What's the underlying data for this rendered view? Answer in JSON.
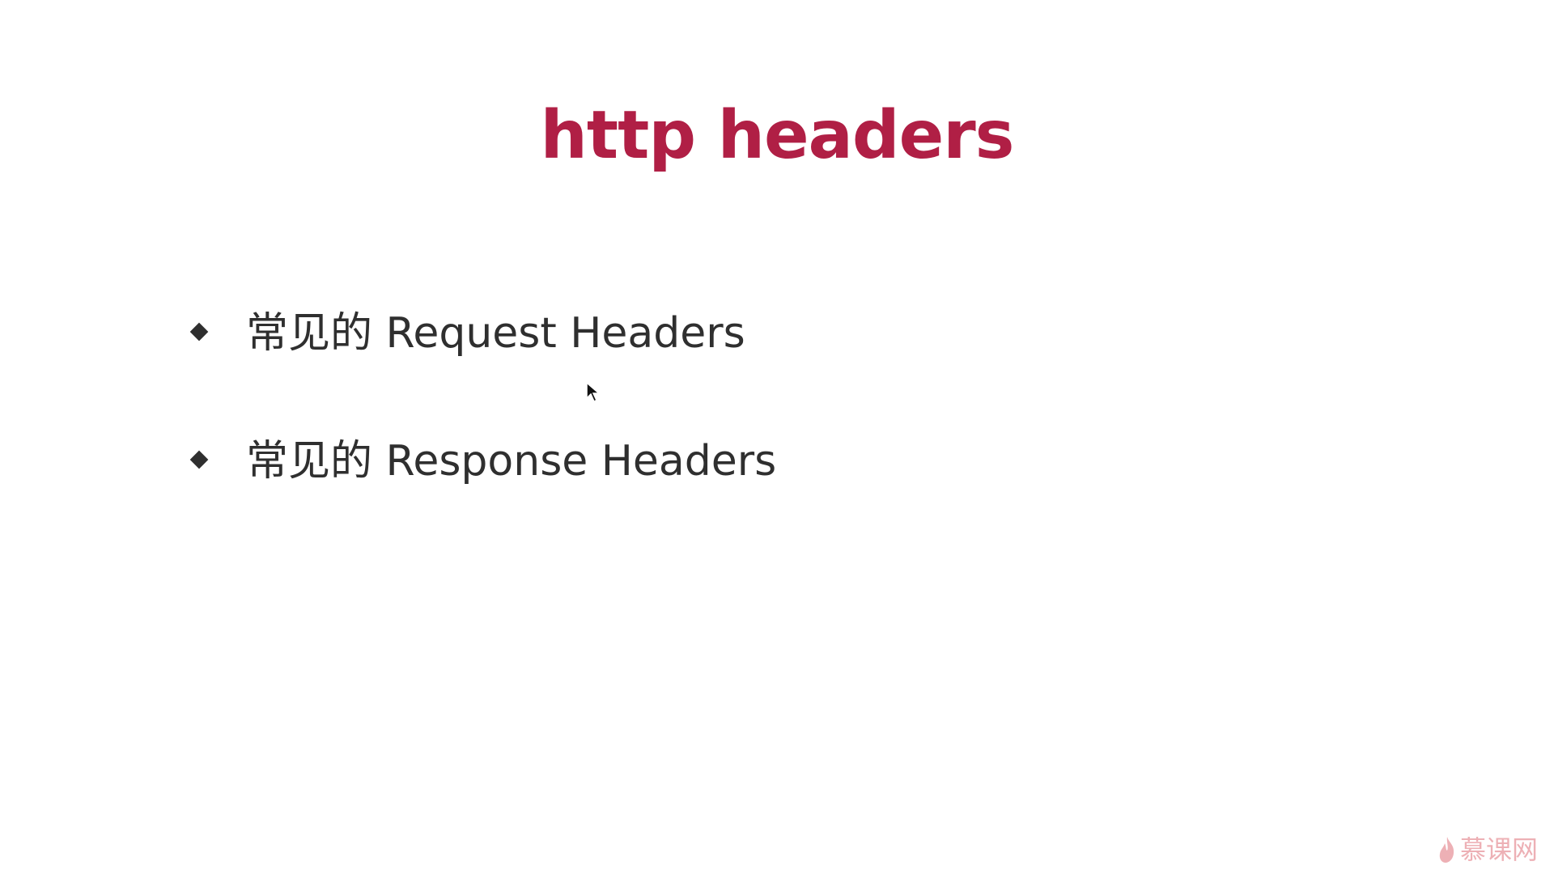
{
  "slide": {
    "title": "http headers",
    "bullets": [
      {
        "text": "常见的 Request Headers"
      },
      {
        "text": "常见的 Response Headers"
      }
    ]
  },
  "watermark": {
    "text": "慕课网",
    "icon": "flame-icon"
  },
  "colors": {
    "title": "#b01f45",
    "text": "#2f2f2f",
    "watermark": "#e0707a"
  }
}
